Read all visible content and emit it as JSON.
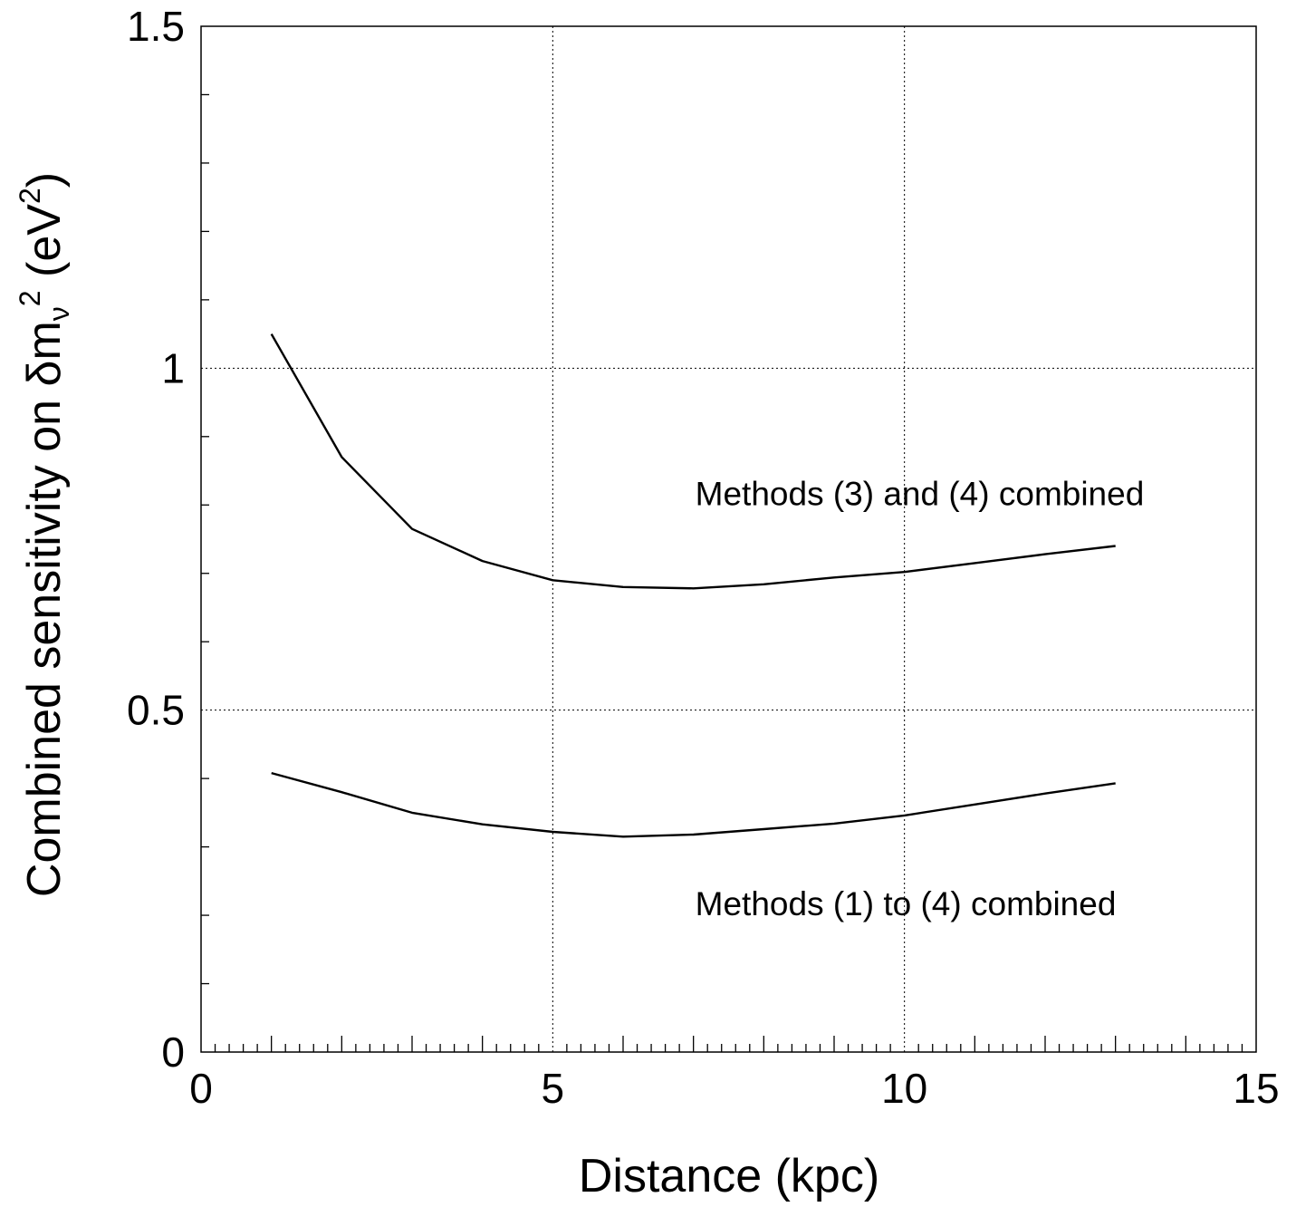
{
  "chart_data": {
    "type": "line",
    "xlabel": "Distance (kpc)",
    "ylabel": {
      "prefix": "Combined sensitivity on δm",
      "subscript": "ν",
      "superscript": "2",
      "suffix_pre": " (eV",
      "suffix_sup": "2",
      "suffix_post": ")"
    },
    "xlim": [
      0,
      15
    ],
    "ylim": [
      0,
      1.5
    ],
    "xticks": [
      {
        "value": 0,
        "label": "0"
      },
      {
        "value": 5,
        "label": "5"
      },
      {
        "value": 10,
        "label": "10"
      },
      {
        "value": 15,
        "label": "15"
      }
    ],
    "yticks": [
      {
        "value": 0,
        "label": "0"
      },
      {
        "value": 0.5,
        "label": "0.5"
      },
      {
        "value": 1,
        "label": "1"
      },
      {
        "value": 1.5,
        "label": "1.5"
      }
    ],
    "grid": true,
    "x": [
      1,
      2,
      3,
      4,
      5,
      6,
      7,
      8,
      9,
      10,
      11,
      12,
      13
    ],
    "series": [
      {
        "values": [
          1.05,
          0.87,
          0.765,
          0.718,
          0.69,
          0.68,
          0.678,
          0.684,
          0.694,
          0.702,
          0.715,
          0.728,
          0.74
        ]
      },
      {
        "values": [
          0.408,
          0.38,
          0.35,
          0.333,
          0.322,
          0.315,
          0.318,
          0.326,
          0.334,
          0.346,
          0.362,
          0.378,
          0.393
        ]
      }
    ],
    "annotations": [
      {
        "text": "Methods (3) and (4) combined",
        "x": 7.0,
        "y": 0.8
      },
      {
        "text": "Methods (1) to (4) combined",
        "x": 7.0,
        "y": 0.2
      }
    ],
    "line_color": "#000000"
  }
}
